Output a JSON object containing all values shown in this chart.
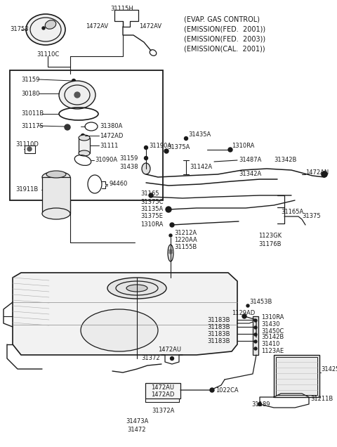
{
  "bg_color": "#ffffff",
  "line_color": "#1a1a1a",
  "text_color": "#1a1a1a",
  "header_lines": [
    "(EVAP. GAS CONTROL)",
    "(EMISSION(FED.  2001))",
    "(EMISSION(FED.  2003))",
    "(EMISSION(CAL.  2001))"
  ],
  "fig_width": 4.8,
  "fig_height": 6.36,
  "dpi": 100
}
